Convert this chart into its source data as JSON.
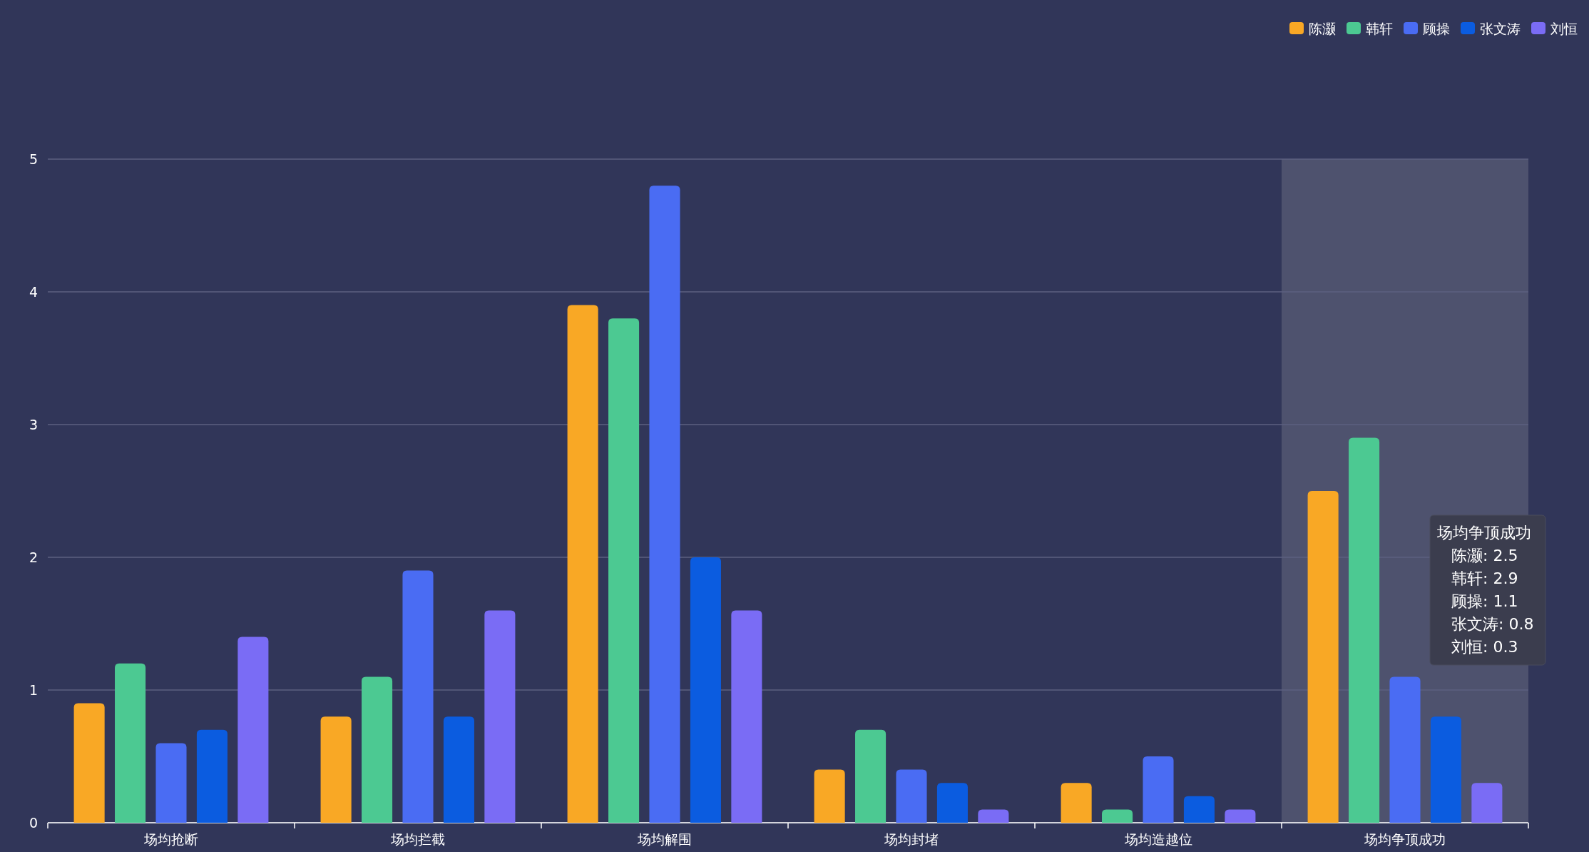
{
  "chart_data": {
    "type": "bar",
    "categories": [
      "场均抢断",
      "场均拦截",
      "场均解围",
      "场均封堵",
      "场均造越位",
      "场均争顶成功"
    ],
    "series": [
      {
        "name": "陈灏",
        "color": "#f9a825",
        "values": [
          0.9,
          0.8,
          3.9,
          0.4,
          0.3,
          2.5
        ]
      },
      {
        "name": "韩轩",
        "color": "#4cc992",
        "values": [
          1.2,
          1.1,
          3.8,
          0.7,
          0.1,
          2.9
        ]
      },
      {
        "name": "顾操",
        "color": "#4a6cf3",
        "values": [
          0.6,
          1.9,
          4.8,
          0.4,
          0.5,
          1.1
        ]
      },
      {
        "name": "张文涛",
        "color": "#0b5ce0",
        "values": [
          0.7,
          0.8,
          2.0,
          0.3,
          0.2,
          0.8
        ]
      },
      {
        "name": "刘恒",
        "color": "#7a6cf5",
        "values": [
          1.4,
          1.6,
          1.6,
          0.1,
          0.1,
          0.3
        ]
      }
    ],
    "ylim": [
      0,
      5
    ],
    "yticks": [
      0,
      1,
      2,
      3,
      4,
      5
    ],
    "grid": "y",
    "legend": "top right",
    "bands": [
      {
        "axis": "x",
        "from": "场均争顶成功",
        "to": "场均争顶成功",
        "color": "#4e526e"
      }
    ],
    "annotations": [
      "场均争顶成功",
      "陈灏: 2.5",
      "韩轩: 2.9",
      "顾操: 1.1",
      "张文涛: 0.8",
      "刘恒: 0.3"
    ]
  }
}
